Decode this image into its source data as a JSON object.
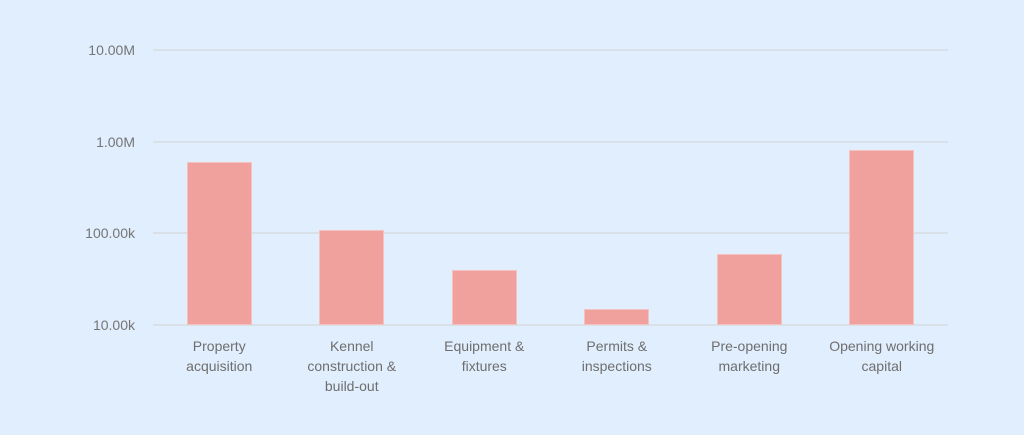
{
  "chart_data": {
    "type": "bar",
    "title": "",
    "xlabel": "",
    "ylabel": "",
    "yscale": "log",
    "ylim": [
      10000,
      10000000
    ],
    "yticks": [
      10000,
      100000,
      1000000,
      10000000
    ],
    "ytick_labels": [
      "10.00k",
      "100.00k",
      "1.00M",
      "10.00M"
    ],
    "grid": true,
    "legend": null,
    "categories": [
      "Property acquisition",
      "Kennel construction & build-out",
      "Equipment & fixtures",
      "Permits & inspections",
      "Pre-opening marketing",
      "Opening working capital"
    ],
    "category_labels_wrapped": [
      "Property\nacquisition",
      "Kennel\nconstruction &\nbuild-out",
      "Equipment &\nfixtures",
      "Permits &\ninspections",
      "Pre-opening\nmarketing",
      "Opening working\ncapital"
    ],
    "values": [
      600000,
      110000,
      40000,
      15000,
      60000,
      820000
    ],
    "bar_color": "#f1a19d"
  },
  "colors": {
    "background": "#e1eefd",
    "gridline": "#d9e0e8",
    "tick_text": "#757575",
    "category_text": "#6e6e6e"
  }
}
